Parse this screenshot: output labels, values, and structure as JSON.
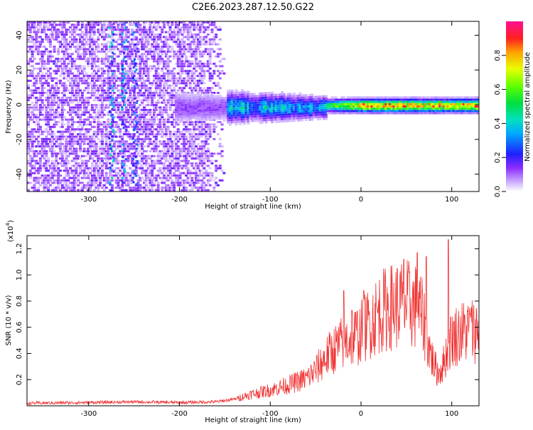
{
  "page_title": "C2E6.2023.287.12.50.G22",
  "chart_data": [
    {
      "type": "heatmap",
      "xlabel": "Height of straight line (km)",
      "ylabel": "Frequency (Hz)",
      "xlim": [
        -368,
        130
      ],
      "ylim": [
        -50,
        48
      ],
      "x_ticks": [
        -300,
        -200,
        -100,
        0,
        100
      ],
      "y_ticks": [
        -40,
        -20,
        0,
        20,
        40
      ],
      "colorbar": {
        "label": "Normalized spectral amplitude",
        "range": [
          0.0,
          1.0
        ],
        "ticks": [
          "0.0",
          "0.2",
          "0.4",
          "0.6",
          "0.8"
        ],
        "tick_values": [
          0.0,
          0.2,
          0.4,
          0.6,
          0.8
        ]
      }
    },
    {
      "type": "line",
      "xlabel": "Height of straight line (km)",
      "ylabel": "SNR (10 * v/v)",
      "y_scale_label": "(x10",
      "y_scale_exp": "4",
      "xlim": [
        -368,
        130
      ],
      "ylim": [
        0,
        1.3
      ],
      "x_ticks": [
        -300,
        -200,
        -100,
        0,
        100
      ],
      "y_ticks": [
        0.2,
        0.4,
        0.6,
        0.8,
        1.0,
        1.2
      ],
      "y_tick_labels": [
        "0.2",
        "0.4",
        "0.6",
        "0.8",
        "1.0",
        "1.2"
      ],
      "line_color": "#f03030",
      "envelope": {
        "x": [
          -368,
          -300,
          -250,
          -200,
          -160,
          -140,
          -120,
          -100,
          -80,
          -60,
          -50,
          -40,
          -30,
          -20,
          -10,
          0,
          10,
          20,
          30,
          40,
          50,
          60,
          65,
          70,
          75,
          80,
          85,
          90,
          95,
          100,
          110,
          120,
          130
        ],
        "y": [
          0.02,
          0.025,
          0.03,
          0.025,
          0.03,
          0.05,
          0.09,
          0.12,
          0.16,
          0.21,
          0.27,
          0.36,
          0.43,
          0.48,
          0.52,
          0.56,
          0.64,
          0.71,
          0.75,
          0.77,
          0.78,
          0.76,
          0.72,
          0.62,
          0.45,
          0.32,
          0.25,
          0.3,
          0.42,
          0.52,
          0.56,
          0.58,
          0.58
        ]
      },
      "peaks": [
        {
          "x": -19,
          "y": 0.88
        },
        {
          "x": -10,
          "y": 0.73
        },
        {
          "x": 3,
          "y": 0.88
        },
        {
          "x": 47,
          "y": 1.12
        },
        {
          "x": 62,
          "y": 1.17
        },
        {
          "x": 72,
          "y": 1.14
        },
        {
          "x": 96,
          "y": 1.27
        },
        {
          "x": 120,
          "y": 0.7
        }
      ]
    }
  ],
  "colors": {
    "series": "#f03030",
    "frame": "#000000",
    "heatmap_low": "#e6d4ff",
    "heatmap_mid": "#7a1fff",
    "heatmap_high": "#ff0000"
  }
}
